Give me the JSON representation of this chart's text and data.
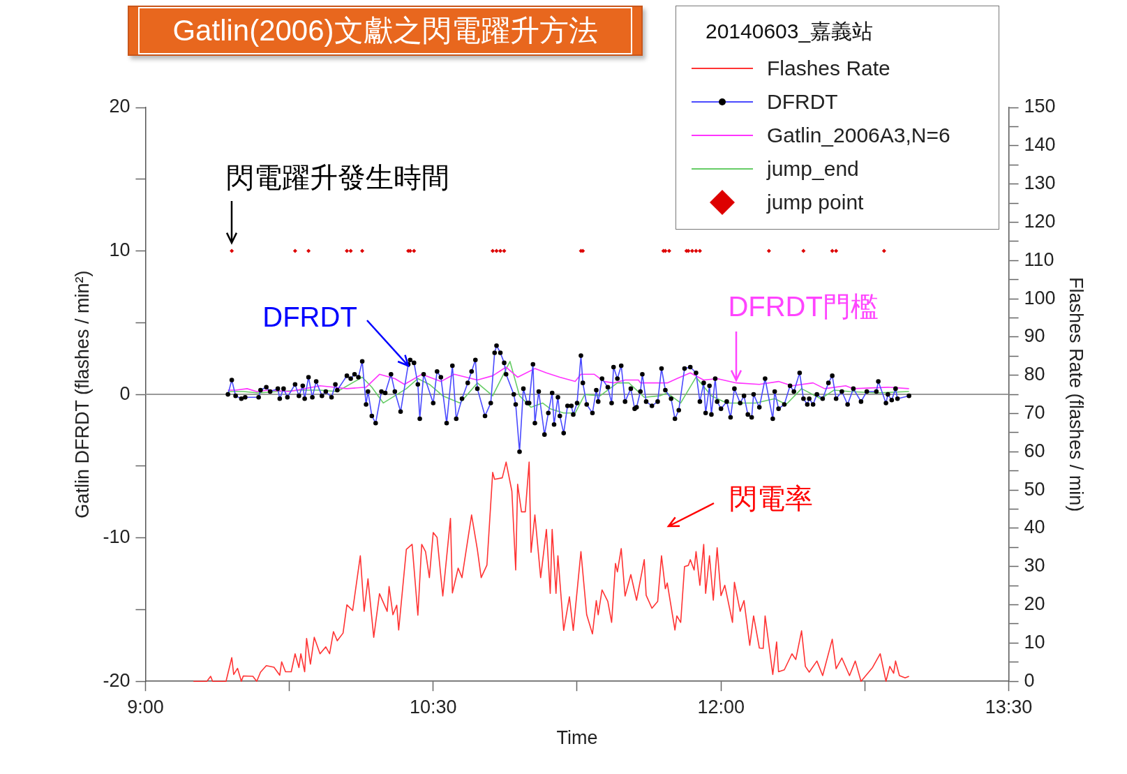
{
  "chart_data": {
    "type": "line",
    "title": "Gatlin(2006)文獻之閃電躍升方法",
    "xlabel": "Time",
    "ylabel": "Gatlin DFRDT (flashes / min²)",
    "y2label": "Flashes Rate (flashes / min)",
    "legend_title": "20140603_嘉義站",
    "legend": "top right",
    "marker": "none",
    "line_style": "solid",
    "xlim": [
      9,
      13.5
    ],
    "xticks": [
      {
        "value": 9,
        "label": "9:00"
      },
      {
        "value": 9.75,
        "label": null
      },
      {
        "value": 10.5,
        "label": "10:30"
      },
      {
        "value": 11.25,
        "label": null
      },
      {
        "value": 12,
        "label": "12:00"
      },
      {
        "value": 12.75,
        "label": null
      },
      {
        "value": 13.5,
        "label": "13:30"
      }
    ],
    "ylim": [
      -20,
      20
    ],
    "yticks": [
      -20,
      {
        "value": -15,
        "label": null
      },
      -10,
      {
        "value": -5,
        "label": null
      },
      0,
      {
        "value": 5,
        "label": null
      },
      10,
      {
        "value": 15,
        "label": null
      },
      20
    ],
    "y2lim": [
      0,
      150
    ],
    "y2ticks": [
      0,
      {
        "value": 5,
        "label": null
      },
      10,
      {
        "value": 15,
        "label": null
      },
      20,
      {
        "value": 25,
        "label": null
      },
      30,
      {
        "value": 35,
        "label": null
      },
      40,
      {
        "value": 45,
        "label": null
      },
      50,
      {
        "value": 55,
        "label": null
      },
      60,
      {
        "value": 65,
        "label": null
      },
      70,
      {
        "value": 75,
        "label": null
      },
      80,
      {
        "value": 85,
        "label": null
      },
      90,
      {
        "value": 95,
        "label": null
      },
      100,
      {
        "value": 105,
        "label": null
      },
      110,
      {
        "value": 115,
        "label": null
      },
      120,
      {
        "value": 125,
        "label": null
      },
      130,
      {
        "value": 135,
        "label": null
      },
      140,
      {
        "value": 145,
        "label": null
      },
      150
    ],
    "ref_lines": [
      {
        "axis": "y",
        "value": 0,
        "color": "#999999"
      }
    ],
    "annotations": [
      {
        "text": "閃電躍升發生時間",
        "x": 9.45,
        "y": 10
      },
      {
        "text": "DFRDT",
        "x": 10.37,
        "y": 2.0
      },
      {
        "text": "DFRDT門檻",
        "x": 12.08,
        "y": 1.0
      },
      "閃電率"
    ],
    "series": [
      {
        "name": "Flashes Rate",
        "color": "#ff3333",
        "axis": "y2",
        "x": [
          9.25,
          9.32,
          9.34,
          9.35,
          9.42,
          9.45,
          9.46,
          9.48,
          9.5,
          9.51,
          9.56,
          9.58,
          9.6,
          9.63,
          9.67,
          9.7,
          9.71,
          9.73,
          9.76,
          9.78,
          9.8,
          9.81,
          9.83,
          9.84,
          9.86,
          9.88,
          9.91,
          9.94,
          9.96,
          9.98,
          10.0,
          10.03,
          10.05,
          10.08,
          10.12,
          10.14,
          10.16,
          10.19,
          10.22,
          10.26,
          10.27,
          10.29,
          10.31,
          10.32,
          10.36,
          10.39,
          10.42,
          10.44,
          10.46,
          10.48,
          10.5,
          10.52,
          10.55,
          10.59,
          10.6,
          10.63,
          10.65,
          10.7,
          10.73,
          10.75,
          10.78,
          10.81,
          10.82,
          10.86,
          10.88,
          10.91,
          10.93,
          10.94,
          10.96,
          10.98,
          11.0,
          11.01,
          11.03,
          11.06,
          11.09,
          11.11,
          11.12,
          11.14,
          11.15,
          11.18,
          11.21,
          11.23,
          11.27,
          11.3,
          11.33,
          11.35,
          11.36,
          11.38,
          11.41,
          11.43,
          11.45,
          11.46,
          11.48,
          11.5,
          11.53,
          11.56,
          11.6,
          11.61,
          11.64,
          11.67,
          11.69,
          11.71,
          11.72,
          11.76,
          11.77,
          11.79,
          11.81,
          11.83,
          11.84,
          11.86,
          11.87,
          11.89,
          11.91,
          11.92,
          11.94,
          11.96,
          11.98,
          12.0,
          12.02,
          12.06,
          12.07,
          12.1,
          12.12,
          12.15,
          12.17,
          12.2,
          12.22,
          12.23,
          12.27,
          12.29,
          12.3,
          12.33,
          12.37,
          12.39,
          12.42,
          12.44,
          12.46,
          12.5,
          12.53,
          12.58,
          12.6,
          12.63,
          12.67,
          12.7,
          12.73,
          12.79,
          12.83,
          12.86,
          12.88,
          12.9,
          12.91,
          12.93,
          12.96,
          12.98
        ],
        "values": [
          0,
          0,
          1.3,
          0,
          0,
          6.2,
          1.8,
          3.4,
          0,
          1.4,
          1.3,
          0,
          2.4,
          4.1,
          3.7,
          1.6,
          5.1,
          2.5,
          2.5,
          7.2,
          3.6,
          7.2,
          2.5,
          11.2,
          4.5,
          11.5,
          7.2,
          9.0,
          7.2,
          13.0,
          10.6,
          12.6,
          20.0,
          18.5,
          32.8,
          18.3,
          26.8,
          11.5,
          22.9,
          18.3,
          24.8,
          17.4,
          19.9,
          13.4,
          34.5,
          35.8,
          17.3,
          35.8,
          33.9,
          27.1,
          38.9,
          37.6,
          22.3,
          42.6,
          23.1,
          29.6,
          27.1,
          43.5,
          34.5,
          27.1,
          30.4,
          54.6,
          52.8,
          53.2,
          57.3,
          49.7,
          29.1,
          51.5,
          44.3,
          44.3,
          57.3,
          33.7,
          43.5,
          27.1,
          39.7,
          23.0,
          39.7,
          23.0,
          32.8,
          13.3,
          22.1,
          13.3,
          33.9,
          17.4,
          12.4,
          21.1,
          17.4,
          23.9,
          20.9,
          15.4,
          30.8,
          28.6,
          34.7,
          22.3,
          27.9,
          21.2,
          31.8,
          22.5,
          19.1,
          20.9,
          32.8,
          24.2,
          25.7,
          13.4,
          17.1,
          15.4,
          30.0,
          30.3,
          31.8,
          29.1,
          33.9,
          25.1,
          35.8,
          23.0,
          32.8,
          21.2,
          34.9,
          22.4,
          25.1,
          15.4,
          25.9,
          18.3,
          21.1,
          9.4,
          17.1,
          8.7,
          8.6,
          17.1,
          1.8,
          10.3,
          2.5,
          3.0,
          7.2,
          5.7,
          13.2,
          3.9,
          2.4,
          5.3,
          1.5,
          11.0,
          3.3,
          6.1,
          1.5,
          5.3,
          0,
          3.6,
          7.2,
          0,
          3.9,
          2.1,
          5.3,
          1.5,
          0.9,
          1.3
        ]
      },
      {
        "name": "DFRDT",
        "color": "#4a4aff",
        "marker": "circle",
        "x": [
          9.43,
          9.45,
          9.47,
          9.5,
          9.52,
          9.59,
          9.6,
          9.63,
          9.65,
          9.69,
          9.7,
          9.72,
          9.74,
          9.78,
          9.8,
          9.82,
          9.83,
          9.85,
          9.87,
          9.89,
          9.92,
          9.94,
          9.97,
          9.99,
          10.0,
          10.05,
          10.07,
          10.09,
          10.11,
          10.13,
          10.15,
          10.16,
          10.18,
          10.2,
          10.23,
          10.25,
          10.28,
          10.3,
          10.33,
          10.37,
          10.38,
          10.4,
          10.42,
          10.43,
          10.45,
          10.5,
          10.52,
          10.54,
          10.57,
          10.6,
          10.62,
          10.65,
          10.68,
          10.7,
          10.72,
          10.73,
          10.77,
          10.8,
          10.82,
          10.83,
          10.85,
          10.87,
          10.88,
          10.92,
          10.93,
          10.95,
          10.97,
          10.99,
          11.0,
          11.02,
          11.03,
          11.05,
          11.08,
          11.1,
          11.12,
          11.13,
          11.15,
          11.16,
          11.18,
          11.2,
          11.22,
          11.23,
          11.25,
          11.27,
          11.28,
          11.3,
          11.33,
          11.35,
          11.36,
          11.38,
          11.41,
          11.43,
          11.44,
          11.46,
          11.48,
          11.5,
          11.53,
          11.55,
          11.56,
          11.58,
          11.59,
          11.61,
          11.64,
          11.67,
          11.69,
          11.71,
          11.74,
          11.76,
          11.78,
          11.81,
          11.84,
          11.87,
          11.89,
          11.91,
          11.92,
          11.94,
          11.95,
          11.97,
          11.98,
          12.0,
          12.03,
          12.05,
          12.07,
          12.1,
          12.12,
          12.14,
          12.16,
          12.17,
          12.2,
          12.23,
          12.27,
          12.28,
          12.3,
          12.33,
          12.36,
          12.38,
          12.41,
          12.43,
          12.45,
          12.46,
          12.48,
          12.5,
          12.53,
          12.56,
          12.58,
          12.6,
          12.63,
          12.66,
          12.69,
          12.73,
          12.76,
          12.81,
          12.82,
          12.86,
          12.87,
          12.89,
          12.91,
          12.92,
          12.98
        ],
        "values": [
          0,
          1.0,
          -0.1,
          -0.3,
          -0.2,
          -0.2,
          0.3,
          0.5,
          0.2,
          0.4,
          -0.3,
          0.4,
          -0.2,
          0.7,
          -0.1,
          0.6,
          -0.3,
          1.2,
          -0.2,
          0.9,
          -0.1,
          0.2,
          -0.2,
          0.7,
          0.3,
          1.3,
          1.1,
          1.4,
          1.2,
          2.3,
          -0.7,
          0.2,
          -1.5,
          -2.0,
          0.2,
          0.1,
          1.4,
          0.2,
          -1.2,
          2.1,
          2.4,
          2.2,
          0.7,
          -1.7,
          1.4,
          -0.6,
          1.6,
          1.2,
          -2.0,
          2.0,
          -1.7,
          -0.3,
          0.8,
          1.6,
          2.4,
          0.4,
          -1.5,
          -0.6,
          2.9,
          3.4,
          2.9,
          2.2,
          1.4,
          0,
          -0.7,
          -4.0,
          0.4,
          -0.6,
          -0.6,
          2.1,
          -2.0,
          0.2,
          -2.8,
          -1.3,
          0.1,
          -2.1,
          -0.2,
          -1.5,
          -2.7,
          -0.8,
          -0.8,
          -1.4,
          -0.6,
          2.7,
          0.8,
          -0.7,
          -1.3,
          0.3,
          -0.5,
          1.1,
          0.5,
          -0.6,
          1.9,
          1.1,
          2.0,
          -0.5,
          0.4,
          -1.0,
          -0.9,
          0.2,
          1.4,
          -0.5,
          -0.8,
          -0.5,
          1.8,
          0.3,
          -0.3,
          -1.7,
          -1.1,
          1.8,
          1.9,
          1.5,
          -0.5,
          0.8,
          -1.3,
          0.6,
          -1.4,
          1.1,
          -0.5,
          -1.0,
          -0.5,
          -1.6,
          0.4,
          -0.6,
          -0.1,
          -1.4,
          -1.6,
          0,
          -0.9,
          1.1,
          -1.7,
          0.2,
          -1.0,
          -0.7,
          0.6,
          0.2,
          1.5,
          -0.3,
          -0.7,
          -0.3,
          -0.7,
          0,
          -0.3,
          0.8,
          1.3,
          -0.3,
          0.2,
          -0.7,
          0.4,
          -0.5,
          0.2,
          0.2,
          0.9,
          -0.6,
          0,
          -0.4,
          0.4,
          -0.3,
          -0.1
        ]
      },
      {
        "name": "Gatlin_2006A3,N=6",
        "color": "#ff33ff",
        "x": [
          9.43,
          9.47,
          9.53,
          9.58,
          9.64,
          9.75,
          9.83,
          9.91,
          9.98,
          10.05,
          10.15,
          10.22,
          10.3,
          10.35,
          10.44,
          10.54,
          10.61,
          10.73,
          10.81,
          10.88,
          10.94,
          11.03,
          11.09,
          11.16,
          11.24,
          11.27,
          11.34,
          11.39,
          11.44,
          11.5,
          11.57,
          11.58,
          11.72,
          11.77,
          11.84,
          11.91,
          11.98,
          12.08,
          12.2,
          12.3,
          12.37,
          12.48,
          12.54,
          12.65,
          12.69,
          12.87,
          12.98
        ],
        "values": [
          0.3,
          0.3,
          0.4,
          0.2,
          0.3,
          0.2,
          0.4,
          0.6,
          0.5,
          0.4,
          0.5,
          1.4,
          1.1,
          0.7,
          1.4,
          0.9,
          1.4,
          1.0,
          1.3,
          1.9,
          1.2,
          1.8,
          1.5,
          1.2,
          0.9,
          1.4,
          1.4,
          0.9,
          0.8,
          1.0,
          1.0,
          0.8,
          0.8,
          1.1,
          1.5,
          1.0,
          1.1,
          0.8,
          0.7,
          0.9,
          0.6,
          0.8,
          0.4,
          0.6,
          0.4,
          0.5,
          0.4
        ]
      },
      {
        "name": "jump_end",
        "color": "#66cc66",
        "x": [
          9.43,
          9.51,
          9.59,
          9.69,
          9.81,
          9.91,
          10.0,
          10.13,
          10.18,
          10.24,
          10.3,
          10.36,
          10.42,
          10.48,
          10.55,
          10.64,
          10.73,
          10.81,
          10.9,
          10.95,
          11.01,
          11.07,
          11.11,
          11.18,
          11.24,
          11.29,
          11.37,
          11.46,
          11.52,
          11.6,
          11.68,
          11.72,
          11.79,
          11.87,
          11.95,
          12.03,
          12.18,
          12.28,
          12.34,
          12.42,
          12.52,
          12.59,
          12.67,
          12.81,
          12.98
        ],
        "values": [
          0.2,
          0.2,
          0.1,
          0.2,
          0.3,
          0.3,
          0.2,
          1.2,
          0.5,
          -0.6,
          -0.1,
          0.4,
          1.1,
          0.7,
          -0.1,
          -0.6,
          0.8,
          -0.1,
          2.3,
          -0.1,
          -0.9,
          -0.6,
          -1.0,
          -1.3,
          -1.3,
          0,
          -0.1,
          0.8,
          0.8,
          -0.2,
          -0.1,
          0.1,
          -0.6,
          1.2,
          -0.1,
          -0.6,
          -0.6,
          -0.3,
          -0.7,
          0.4,
          -0.3,
          0.3,
          0.2,
          0.1,
          0.2
        ]
      },
      {
        "name": "jump point",
        "type": "scatter",
        "color": "#dd0000",
        "marker": "diamond",
        "x": [
          9.45,
          9.78,
          9.85,
          10.05,
          10.07,
          10.13,
          10.37,
          10.38,
          10.4,
          10.81,
          10.83,
          10.85,
          10.87,
          11.27,
          11.28,
          11.7,
          11.71,
          11.73,
          11.82,
          11.83,
          11.85,
          11.87,
          11.89,
          12.25,
          12.43,
          12.58,
          12.6,
          12.85
        ],
        "values": [
          10,
          10,
          10,
          10,
          10,
          10,
          10,
          10,
          10,
          10,
          10,
          10,
          10,
          10,
          10,
          10,
          10,
          10,
          10,
          10,
          10,
          10,
          10,
          10,
          10,
          10,
          10,
          10
        ]
      }
    ]
  }
}
